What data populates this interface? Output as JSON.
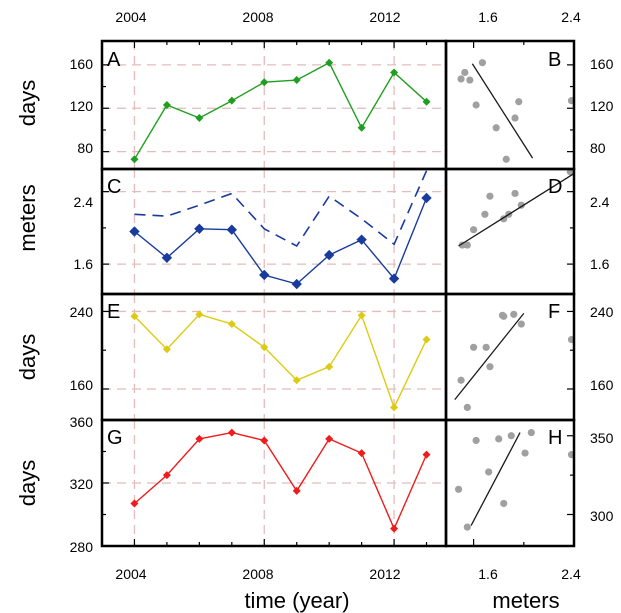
{
  "chart_data": [
    {
      "panel": "A",
      "type": "line",
      "letter": "A",
      "x": [
        2004,
        2005,
        2006,
        2007,
        2008,
        2009,
        2010,
        2011,
        2012,
        2013
      ],
      "series": [
        {
          "values": [
            73,
            123,
            111,
            127,
            144,
            146,
            162,
            102,
            153,
            126
          ],
          "color": "#1f9e1f",
          "marker": "diamond",
          "style": "solid"
        }
      ],
      "ylabel": "days",
      "ylim": [
        64,
        182
      ],
      "yticks": [
        80,
        120,
        160
      ],
      "ygrid": [
        80,
        120,
        160
      ]
    },
    {
      "panel": "B",
      "type": "scatter",
      "letter": "B",
      "x": [
        1.5,
        1.53,
        1.57,
        1.62,
        1.67,
        1.78,
        1.86,
        1.93,
        1.96,
        2.38
      ],
      "y": [
        147,
        153,
        146,
        123,
        162,
        102,
        73,
        111,
        126,
        127
      ],
      "fit": {
        "x": [
          1.59,
          2.07
        ],
        "y": [
          161,
          74
        ]
      },
      "color": "#a0a0a0",
      "xlim": [
        1.38,
        2.4
      ],
      "ylim": [
        64,
        182
      ],
      "yticks": [
        80,
        120,
        160
      ]
    },
    {
      "panel": "C",
      "type": "line",
      "letter": "C",
      "x": [
        2004,
        2005,
        2006,
        2007,
        2008,
        2009,
        2010,
        2011,
        2012,
        2013
      ],
      "series": [
        {
          "values": [
            1.96,
            1.67,
            1.99,
            1.98,
            1.48,
            1.38,
            1.7,
            1.87,
            1.44,
            2.33
          ],
          "color": "#1a3b9e",
          "marker": "diamond",
          "style": "solid"
        },
        {
          "values": [
            2.15,
            2.13,
            2.25,
            2.38,
            1.99,
            1.8,
            2.35,
            2.1,
            1.82,
            2.63
          ],
          "color": "#1a3b9e",
          "marker": "none",
          "style": "dashed"
        }
      ],
      "ylabel": "meters",
      "ylim": [
        1.27,
        2.65
      ],
      "yticks": [
        1.6,
        2.4
      ],
      "ygrid": [
        1.6,
        2.4
      ]
    },
    {
      "panel": "D",
      "type": "scatter",
      "letter": "D",
      "x": [
        1.51,
        1.55,
        1.6,
        1.69,
        1.73,
        1.84,
        1.88,
        1.93,
        1.98,
        2.37
      ],
      "y": [
        1.81,
        1.81,
        1.98,
        2.15,
        2.35,
        2.1,
        2.15,
        2.38,
        2.25,
        2.62
      ],
      "fit": {
        "x": [
          1.48,
          2.4
        ],
        "y": [
          1.8,
          2.6
        ]
      },
      "color": "#a0a0a0",
      "xlim": [
        1.38,
        2.4
      ],
      "ylim": [
        1.27,
        2.65
      ],
      "yticks": [
        1.6,
        2.4
      ]
    },
    {
      "panel": "E",
      "type": "line",
      "letter": "E",
      "x": [
        2004,
        2005,
        2006,
        2007,
        2008,
        2009,
        2010,
        2011,
        2012,
        2013
      ],
      "series": [
        {
          "values": [
            235,
            201,
            237,
            227,
            203,
            169,
            183,
            236,
            141,
            211
          ],
          "color": "#dccb12",
          "marker": "diamond",
          "style": "solid"
        }
      ],
      "ylabel": "days",
      "ylim": [
        128,
        258
      ],
      "yticks": [
        160,
        240
      ],
      "ygrid": [
        160,
        240
      ]
    },
    {
      "panel": "F",
      "type": "scatter",
      "letter": "F",
      "x": [
        1.5,
        1.55,
        1.6,
        1.7,
        1.73,
        1.83,
        1.84,
        1.92,
        1.98,
        2.38
      ],
      "y": [
        169,
        141,
        203,
        203,
        183,
        236,
        235,
        237,
        227,
        211
      ],
      "fit": {
        "x": [
          1.45,
          2.0
        ],
        "y": [
          149,
          238
        ]
      },
      "color": "#a0a0a0",
      "xlim": [
        1.38,
        2.4
      ],
      "ylim": [
        128,
        258
      ],
      "yticks": [
        160,
        240
      ]
    },
    {
      "panel": "G",
      "type": "line",
      "letter": "G",
      "x": [
        2004,
        2005,
        2006,
        2007,
        2008,
        2009,
        2010,
        2011,
        2012,
        2013
      ],
      "series": [
        {
          "values": [
            307,
            325,
            348,
            352,
            347,
            315,
            348,
            339,
            291,
            338
          ],
          "color": "#ee1c1c",
          "marker": "diamond",
          "style": "solid"
        }
      ],
      "ylabel": "days",
      "ylim": [
        280,
        360
      ],
      "yticks": [
        280,
        320,
        360
      ],
      "ygrid": [
        320
      ]
    },
    {
      "panel": "H",
      "type": "scatter",
      "letter": "H",
      "x": [
        1.48,
        1.55,
        1.62,
        1.72,
        1.8,
        1.84,
        1.9,
        2.01,
        2.06,
        2.38
      ],
      "y": [
        316,
        292,
        347,
        327,
        348,
        307,
        350,
        339,
        352,
        338
      ],
      "fit": {
        "x": [
          1.58,
          1.97
        ],
        "y": [
          293,
          352
        ]
      },
      "color": "#a0a0a0",
      "xlim": [
        1.38,
        2.4
      ],
      "ylim": [
        280,
        360
      ],
      "yticks": [
        300,
        350
      ]
    }
  ],
  "axes": {
    "time_ticks": [
      2004,
      2008,
      2012
    ],
    "time_tick_labels": [
      "2004",
      "2008",
      "2012"
    ],
    "time_minor": [
      2005,
      2006,
      2007,
      2009,
      2010,
      2011,
      2013
    ],
    "time_xlim": [
      2003,
      2013.6
    ],
    "meter_ticks": [
      1.6,
      2.4
    ],
    "meter_tick_labels": [
      "1.6",
      "2.4"
    ],
    "time_title": "time (year)",
    "meter_title": "meters"
  },
  "labels": {
    "a_y": [
      "80",
      "120",
      "160"
    ],
    "b_y": [
      "80",
      "120",
      "160"
    ],
    "c_y": [
      "1.6",
      "2.4"
    ],
    "d_y": [
      "1.6",
      "2.4"
    ],
    "e_y": [
      "160",
      "240"
    ],
    "f_y": [
      "160",
      "240"
    ],
    "g_y": [
      "280",
      "320",
      "360"
    ],
    "h_y": [
      "300",
      "350"
    ],
    "ylabel_a": "days",
    "ylabel_c": "meters",
    "ylabel_e": "days",
    "ylabel_g": "days"
  }
}
